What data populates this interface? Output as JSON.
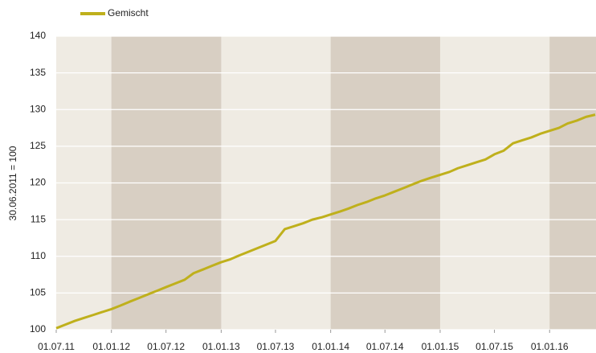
{
  "chart_data": {
    "type": "line",
    "y_axis_label": "30.06.2011 = 100",
    "x": [
      "2011-07",
      "2011-08",
      "2011-09",
      "2011-10",
      "2011-11",
      "2011-12",
      "2012-01",
      "2012-02",
      "2012-03",
      "2012-04",
      "2012-05",
      "2012-06",
      "2012-07",
      "2012-08",
      "2012-09",
      "2012-10",
      "2012-11",
      "2012-12",
      "2013-01",
      "2013-02",
      "2013-03",
      "2013-04",
      "2013-05",
      "2013-06",
      "2013-07",
      "2013-08",
      "2013-09",
      "2013-10",
      "2013-11",
      "2013-12",
      "2014-01",
      "2014-02",
      "2014-03",
      "2014-04",
      "2014-05",
      "2014-06",
      "2014-07",
      "2014-08",
      "2014-09",
      "2014-10",
      "2014-11",
      "2014-12",
      "2015-01",
      "2015-02",
      "2015-03",
      "2015-04",
      "2015-05",
      "2015-06",
      "2015-07",
      "2015-08",
      "2015-09",
      "2015-10",
      "2015-11",
      "2015-12",
      "2016-01",
      "2016-02",
      "2016-03",
      "2016-04",
      "2016-05",
      "2016-06"
    ],
    "series": [
      {
        "name": "Gemischt",
        "color": "#bfb01c",
        "values": [
          100.2,
          100.7,
          101.2,
          101.6,
          102.0,
          102.4,
          102.8,
          103.3,
          103.8,
          104.3,
          104.8,
          105.3,
          105.8,
          106.3,
          106.8,
          107.7,
          108.2,
          108.7,
          109.2,
          109.6,
          110.1,
          110.6,
          111.1,
          111.6,
          112.1,
          113.7,
          114.1,
          114.5,
          115.0,
          115.3,
          115.7,
          116.1,
          116.5,
          117.0,
          117.4,
          117.9,
          118.3,
          118.8,
          119.3,
          119.8,
          120.3,
          120.7,
          121.1,
          121.5,
          122.0,
          122.4,
          122.8,
          123.2,
          123.9,
          124.4,
          125.4,
          125.8,
          126.2,
          126.7,
          127.1,
          127.5,
          128.1,
          128.5,
          129.0,
          129.3
        ]
      }
    ],
    "xlim": [
      "2011-07",
      "2016-06"
    ],
    "xticks": [
      {
        "value": "2011-07",
        "label": "01.07.11"
      },
      {
        "value": "2012-01",
        "label": "01.01.12"
      },
      {
        "value": "2012-07",
        "label": "01.07.12"
      },
      {
        "value": "2013-01",
        "label": "01.01.13"
      },
      {
        "value": "2013-07",
        "label": "01.07.13"
      },
      {
        "value": "2014-01",
        "label": "01.01.14"
      },
      {
        "value": "2014-07",
        "label": "01.07.14"
      },
      {
        "value": "2015-01",
        "label": "01.01.15"
      },
      {
        "value": "2015-07",
        "label": "01.07.15"
      },
      {
        "value": "2016-01",
        "label": "01.01.16"
      }
    ],
    "ylim": [
      100,
      140
    ],
    "yticks": [
      100,
      105,
      110,
      115,
      120,
      125,
      130,
      135,
      140
    ],
    "grid": true,
    "legend": "top-left"
  }
}
